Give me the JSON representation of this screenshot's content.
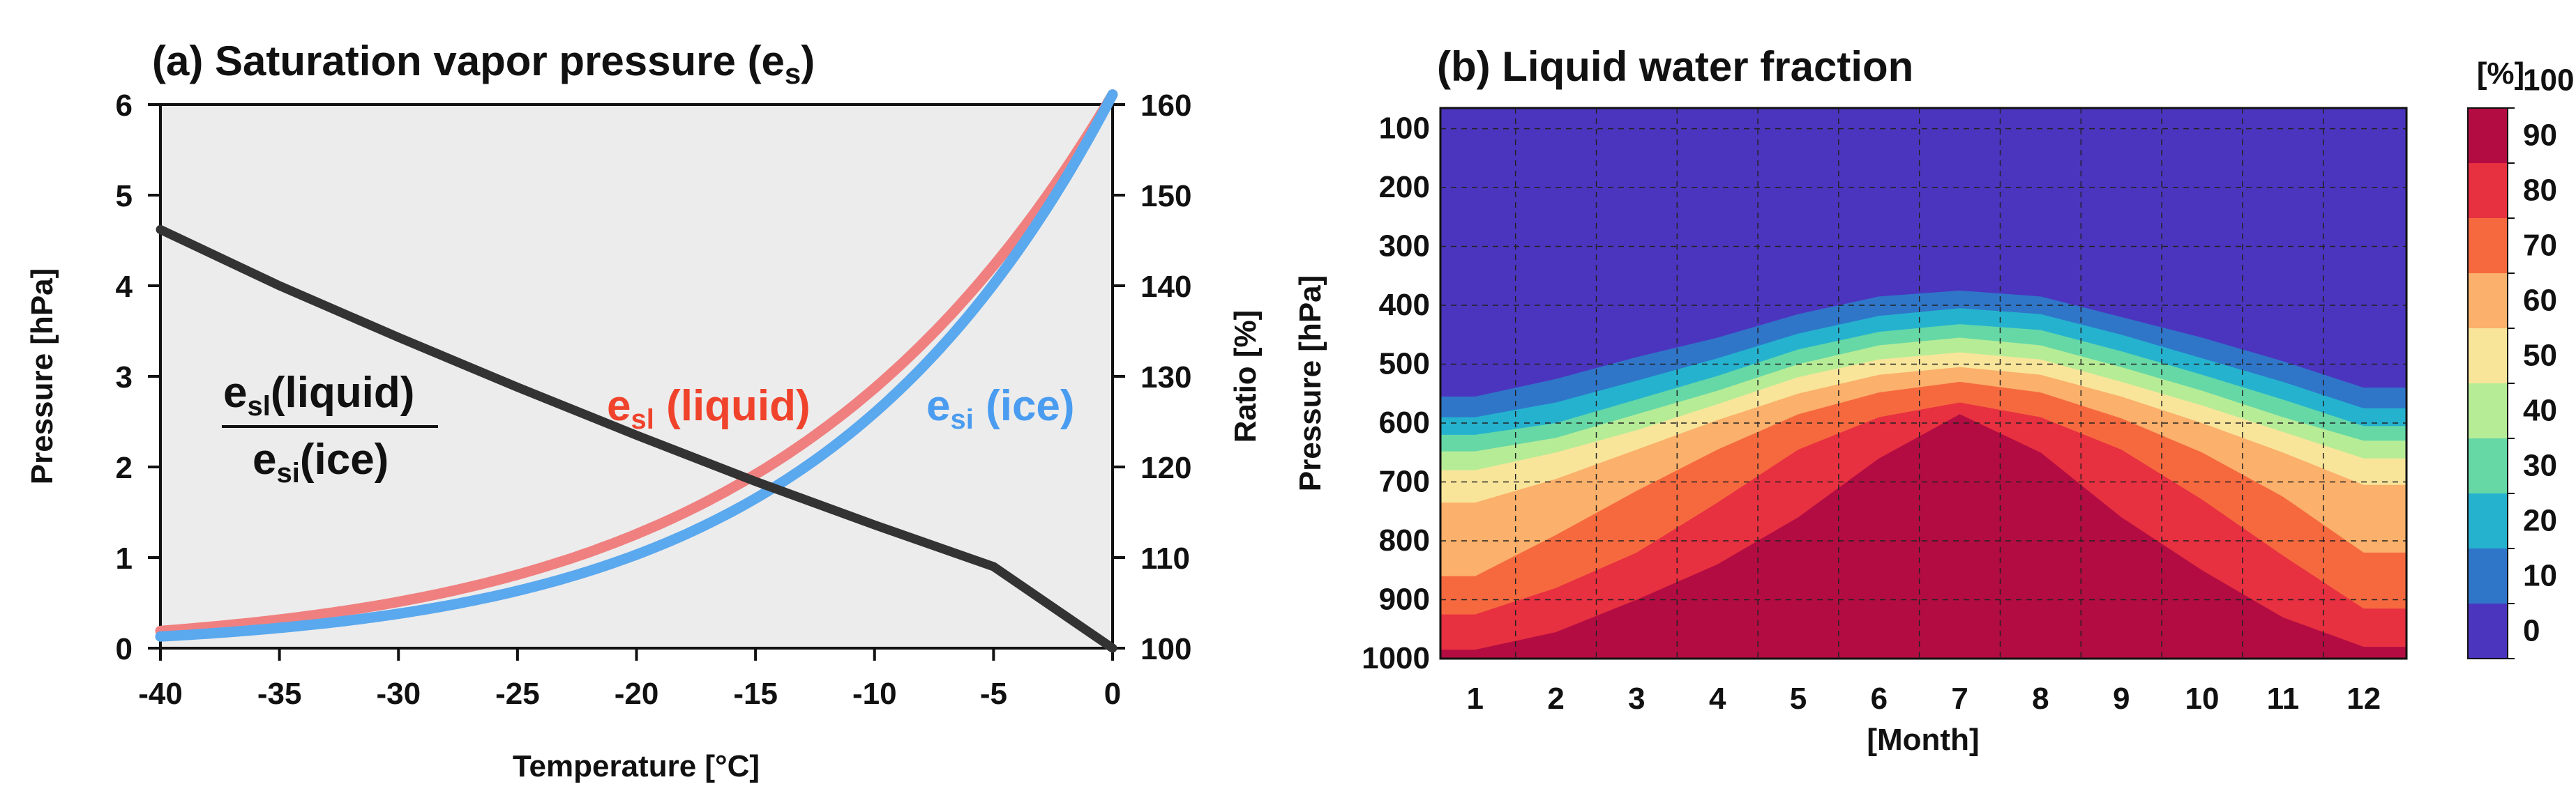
{
  "chart_data": [
    {
      "type": "line",
      "title_main": "(a) Saturation vapor pressure (e",
      "title_sub": "s",
      "title_close": ")",
      "xlabel": "Temperature [°C]",
      "ylabel": "Pressure [hPa]",
      "y2label": "Ratio [%]",
      "xlim": [
        -40,
        0
      ],
      "ylim": [
        0,
        6
      ],
      "y2lim": [
        100,
        160
      ],
      "xticks": [
        "-40",
        "-35",
        "-30",
        "-25",
        "-20",
        "-15",
        "-10",
        "-5",
        "0"
      ],
      "yticks": [
        "0",
        "1",
        "2",
        "3",
        "4",
        "5",
        "6"
      ],
      "y2ticks": [
        "100",
        "110",
        "120",
        "130",
        "140",
        "150",
        "160"
      ],
      "x": [
        -40,
        -35,
        -30,
        -25,
        -20,
        -15,
        -10,
        -5,
        0
      ],
      "series": [
        {
          "name": "e_sl (liquid)",
          "axis": "left",
          "color": "#f08080",
          "values": [
            0.19,
            0.31,
            0.51,
            0.81,
            1.25,
            1.91,
            2.86,
            4.22,
            6.11
          ]
        },
        {
          "name": "e_si (ice)",
          "axis": "left",
          "color": "#5aa8ee",
          "values": [
            0.13,
            0.22,
            0.38,
            0.63,
            1.03,
            1.65,
            2.6,
            4.02,
            6.11
          ]
        },
        {
          "name": "e_sl/e_si ratio",
          "axis": "right",
          "color": "#333333",
          "values": [
            146.2,
            140.0,
            134.3,
            128.8,
            123.5,
            118.4,
            113.6,
            109.0,
            100.0
          ]
        }
      ],
      "labels": {
        "liquid": {
          "main": "e",
          "sub": "sl",
          "rest": " (liquid)",
          "color": "#f0432c"
        },
        "ice": {
          "main": "e",
          "sub": "si",
          "rest": " (ice)",
          "color": "#4a9cf0"
        },
        "ratio_num": {
          "main": "e",
          "sub": "sl",
          "rest": "(liquid)"
        },
        "ratio_den": {
          "main": "e",
          "sub": "si",
          "rest": "(ice)"
        }
      },
      "background": "#ececec"
    },
    {
      "type": "heatmap",
      "title": "(b) Liquid water fraction",
      "xlabel": "[Month]",
      "ylabel": "Pressure [hPa]",
      "xticks": [
        "1",
        "2",
        "3",
        "4",
        "5",
        "6",
        "7",
        "8",
        "9",
        "10",
        "11",
        "12"
      ],
      "yticks": [
        "100",
        "200",
        "300",
        "400",
        "500",
        "600",
        "700",
        "800",
        "900",
        "1000"
      ],
      "x": [
        1,
        2,
        3,
        4,
        5,
        6,
        7,
        8,
        9,
        10,
        11,
        12
      ],
      "ylim_hPa": [
        1000,
        100
      ],
      "contour_levels_percent": [
        0,
        10,
        20,
        30,
        40,
        50,
        60,
        70,
        80,
        90,
        100
      ],
      "contour_pressure_hPa": {
        "10": [
          555,
          525,
          488,
          455,
          415,
          385,
          375,
          385,
          420,
          455,
          495,
          540
        ],
        "20": [
          590,
          565,
          528,
          490,
          448,
          418,
          405,
          415,
          450,
          490,
          530,
          575
        ],
        "30": [
          620,
          600,
          560,
          520,
          475,
          445,
          432,
          442,
          478,
          518,
          560,
          605
        ],
        "40": [
          648,
          625,
          585,
          545,
          500,
          468,
          455,
          468,
          505,
          545,
          590,
          630
        ],
        "50": [
          680,
          650,
          612,
          568,
          522,
          492,
          480,
          492,
          530,
          570,
          615,
          660
        ],
        "60": [
          735,
          695,
          645,
          595,
          550,
          518,
          505,
          518,
          555,
          600,
          650,
          705
        ],
        "70": [
          860,
          790,
          715,
          645,
          585,
          548,
          530,
          548,
          592,
          650,
          725,
          820
        ],
        "80": [
          925,
          880,
          820,
          735,
          645,
          590,
          565,
          590,
          645,
          730,
          825,
          915
        ],
        "90": [
          985,
          955,
          900,
          840,
          760,
          660,
          585,
          650,
          760,
          850,
          930,
          980
        ]
      },
      "colorbar_title": "[%]",
      "colorbar_labels": [
        "0",
        "10",
        "20",
        "30",
        "40",
        "50",
        "60",
        "70",
        "80",
        "90",
        "100"
      ],
      "colors": [
        "#4b35be",
        "#2f76c9",
        "#25b2cf",
        "#65d8a6",
        "#b7ec96",
        "#f8e59a",
        "#fbb06b",
        "#f6693f",
        "#e73040",
        "#b30c42"
      ]
    }
  ]
}
